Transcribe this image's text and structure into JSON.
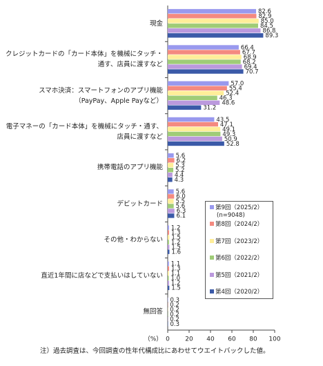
{
  "chart_data": {
    "type": "bar",
    "orientation": "horizontal",
    "categories": [
      "現金",
      "クレジットカードの「カード本体」を機械にタッチ・通す、店員に渡すなど",
      "スマホ決済：スマートフォンのアプリ機能（PayPay、Apple Payなど）",
      "電子マネーの「カード本体」を機械にタッチ・通す、店員に渡すなど",
      "携帯電話のアプリ機能",
      "デビットカード",
      "その他・わからない",
      "直近1年間に店などで支払いはしていない",
      "無回答"
    ],
    "series": [
      {
        "name": "第9回（2025/2）",
        "color": "#9999ee",
        "values": [
          82.6,
          66.4,
          57.0,
          43.5,
          5.6,
          5.6,
          1.2,
          1.1,
          0.3
        ],
        "value_labels": [
          "82.6",
          "66.4",
          "57.0",
          "43.5",
          "5.6",
          "5.6",
          "1.2",
          "1.1",
          "0.3"
        ]
      },
      {
        "name": "第8回（2024/2）",
        "color": "#f48a80",
        "values": [
          82.9,
          67.7,
          55.4,
          47.1,
          6.2,
          6.0,
          1.3,
          1.3,
          0.2
        ],
        "value_labels": [
          "82.9",
          "67.7",
          "55.4",
          "47.1",
          "6.2",
          "6.0",
          "1.3",
          "1.3",
          "0.2"
        ]
      },
      {
        "name": "第7回（2023/2）",
        "color": "#ffee99",
        "values": [
          85.0,
          68.9,
          52.4,
          49.1,
          5.3,
          5.5,
          1.5,
          1.1,
          0.2
        ],
        "value_labels": [
          "85.0",
          "68.9",
          "52.4",
          "49.1",
          "5.3",
          "5.5",
          "1.5",
          "1.1",
          "0.2"
        ]
      },
      {
        "name": "第6回（2022/2）",
        "color": "#9fcc77",
        "values": [
          84.5,
          68.2,
          46.3,
          49.3,
          5.2,
          5.6,
          1.2,
          1.0,
          0.2
        ],
        "value_labels": [
          "84.5",
          "68.2",
          "46.3",
          "49.3",
          "5.2",
          "5.6",
          "1.2",
          "1.0",
          "0.2"
        ]
      },
      {
        "name": "第5回（2021/2）",
        "color": "#bb99dd",
        "values": [
          86.8,
          69.4,
          48.6,
          50.9,
          4.4,
          6.3,
          1.5,
          1.2,
          0.2
        ],
        "value_labels": [
          "86.8",
          "69.4",
          "48.6",
          "50.9",
          "4.4",
          "6.3",
          "1.5",
          "1.2",
          "0.2"
        ]
      },
      {
        "name": "第4回（2020/2）",
        "color": "#3b5aa8",
        "values": [
          89.3,
          70.7,
          31.2,
          52.8,
          4.3,
          6.1,
          1.6,
          1.5,
          0.3
        ],
        "value_labels": [
          "89.3",
          "70.7",
          "31.2",
          "52.8",
          "4.3",
          "6.1",
          "1.6",
          "1.5",
          "0.3"
        ]
      }
    ],
    "legend_note": "(n=9048)",
    "xlabel": "（%）",
    "xlim": [
      0,
      100
    ],
    "xticks": [
      0,
      20,
      40,
      60,
      80,
      100
    ],
    "legend_position": "lower right",
    "note": "注）過去調査は、今回調査の性年代構成比にあわせてウエイトバックした値。"
  }
}
